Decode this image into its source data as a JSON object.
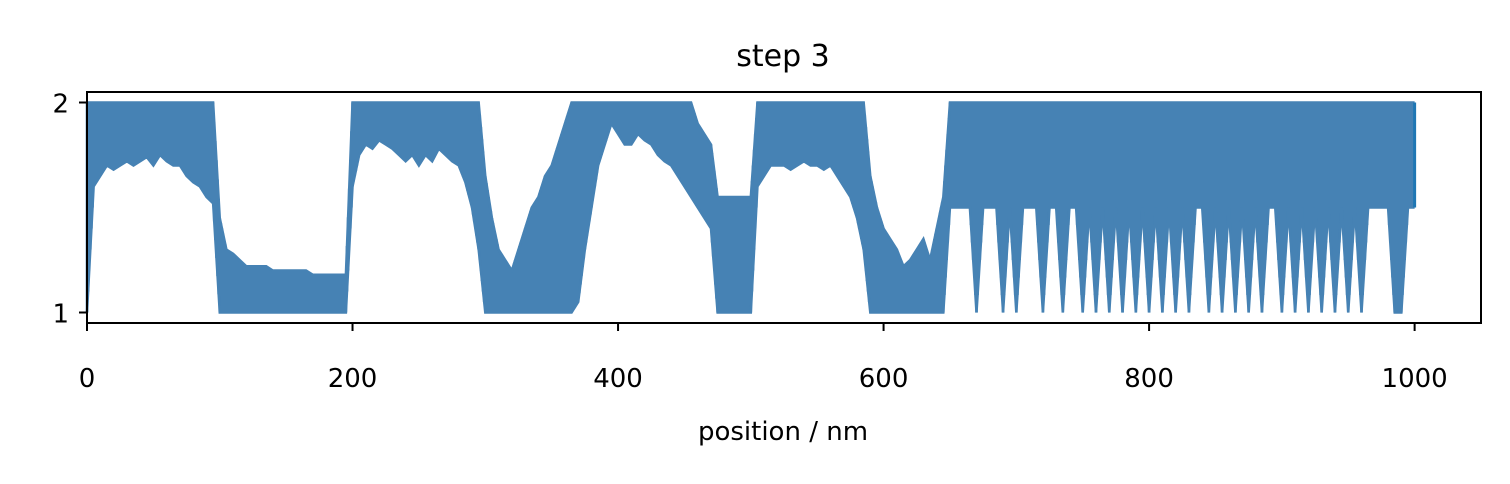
{
  "chart_data": {
    "type": "line",
    "title": "step 3",
    "xlabel": "position / nm",
    "ylabel": "",
    "xlim": [
      0,
      1050
    ],
    "ylim": [
      0.95,
      2.05
    ],
    "xticks": [
      0,
      200,
      400,
      600,
      800,
      1000
    ],
    "xtick_labels": [
      "0",
      "200",
      "400",
      "600",
      "800",
      "1000"
    ],
    "yticks": [
      1,
      2
    ],
    "ytick_labels": [
      "1",
      "2"
    ],
    "grid": false,
    "legend": "none",
    "colors": {
      "series": "#4682b4",
      "end_segment": "#1f77b4",
      "axes": "#000000",
      "background": "#ffffff"
    },
    "series": [
      {
        "x": [
          0,
          5,
          10,
          15,
          20,
          25,
          30,
          35,
          40,
          45,
          50,
          55,
          60,
          65,
          70,
          75,
          80,
          85,
          90,
          95,
          100,
          105,
          110,
          115,
          120,
          125,
          130,
          135,
          140,
          145,
          150,
          155,
          160,
          165,
          170,
          175,
          180,
          185,
          190,
          195,
          200,
          205,
          210,
          215,
          220,
          225,
          230,
          235,
          240,
          245,
          250,
          255,
          260,
          265,
          270,
          275,
          280,
          285,
          290,
          295,
          300,
          305,
          310,
          315,
          320,
          325,
          330,
          335,
          340,
          345,
          350,
          355,
          360,
          365,
          370,
          375,
          380,
          385,
          390,
          395,
          400,
          405,
          410,
          415,
          420,
          425,
          430,
          435,
          440,
          445,
          450,
          455,
          460,
          465,
          470,
          475,
          480,
          485,
          490,
          495,
          500,
          505,
          510,
          515,
          520,
          525,
          530,
          535,
          540,
          545,
          550,
          555,
          560,
          565,
          570,
          575,
          580,
          585,
          590,
          595,
          600,
          605,
          610,
          615,
          620,
          625,
          630,
          635,
          640,
          645,
          650,
          655,
          660,
          665,
          670,
          675,
          680,
          685,
          690,
          695,
          700,
          705,
          710,
          715,
          720,
          725,
          730,
          735,
          740,
          745,
          750,
          755,
          760,
          765,
          770,
          775,
          780,
          785,
          790,
          795,
          800,
          805,
          810,
          815,
          820,
          825,
          830,
          835,
          840,
          845,
          850,
          855,
          860,
          865,
          870,
          875,
          880,
          885,
          890,
          895,
          900,
          905,
          910,
          915,
          920,
          925,
          930,
          935,
          940,
          945,
          950,
          955,
          960,
          965,
          970,
          975,
          980,
          985,
          990,
          995,
          1000
        ],
        "lo": [
          1.0,
          1.6,
          1.65,
          1.7,
          1.68,
          1.7,
          1.72,
          1.7,
          1.72,
          1.74,
          1.7,
          1.75,
          1.72,
          1.7,
          1.7,
          1.65,
          1.62,
          1.6,
          1.55,
          1.52,
          1.0,
          1.0,
          1.0,
          1.0,
          1.0,
          1.0,
          1.0,
          1.0,
          1.0,
          1.0,
          1.0,
          1.0,
          1.0,
          1.0,
          1.0,
          1.0,
          1.0,
          1.0,
          1.0,
          1.0,
          1.6,
          1.75,
          1.8,
          1.78,
          1.82,
          1.8,
          1.78,
          1.75,
          1.72,
          1.75,
          1.7,
          1.75,
          1.72,
          1.78,
          1.75,
          1.72,
          1.7,
          1.62,
          1.5,
          1.3,
          1.0,
          1.0,
          1.0,
          1.0,
          1.0,
          1.0,
          1.0,
          1.0,
          1.0,
          1.0,
          1.0,
          1.0,
          1.0,
          1.0,
          1.05,
          1.3,
          1.5,
          1.7,
          1.8,
          1.9,
          1.85,
          1.8,
          1.8,
          1.85,
          1.82,
          1.8,
          1.75,
          1.72,
          1.7,
          1.65,
          1.6,
          1.55,
          1.5,
          1.45,
          1.4,
          1.0,
          1.0,
          1.0,
          1.0,
          1.0,
          1.0,
          1.6,
          1.65,
          1.7,
          1.7,
          1.7,
          1.68,
          1.7,
          1.72,
          1.7,
          1.7,
          1.68,
          1.7,
          1.65,
          1.6,
          1.55,
          1.45,
          1.3,
          1.0,
          1.0,
          1.0,
          1.0,
          1.0,
          1.0,
          1.0,
          1.0,
          1.0,
          1.0,
          1.0,
          1.0,
          1.5,
          1.5,
          1.5,
          1.5,
          1.0,
          1.5,
          1.5,
          1.5,
          1.0,
          1.5,
          1.0,
          1.5,
          1.5,
          1.5,
          1.0,
          1.5,
          1.5,
          1.0,
          1.5,
          1.5,
          1.0,
          1.5,
          1.0,
          1.5,
          1.0,
          1.5,
          1.0,
          1.5,
          1.0,
          1.5,
          1.0,
          1.5,
          1.0,
          1.5,
          1.0,
          1.5,
          1.0,
          1.5,
          1.5,
          1.0,
          1.5,
          1.0,
          1.5,
          1.0,
          1.5,
          1.0,
          1.5,
          1.0,
          1.5,
          1.5,
          1.0,
          1.5,
          1.0,
          1.5,
          1.0,
          1.5,
          1.0,
          1.5,
          1.0,
          1.5,
          1.0,
          1.5,
          1.0,
          1.5,
          1.5,
          1.5,
          1.5,
          1.0,
          1.0,
          1.5,
          1.5
        ],
        "hi": [
          2.0,
          2.0,
          2.0,
          2.0,
          2.0,
          2.0,
          2.0,
          2.0,
          2.0,
          2.0,
          2.0,
          2.0,
          2.0,
          2.0,
          2.0,
          2.0,
          2.0,
          2.0,
          2.0,
          2.0,
          1.45,
          1.3,
          1.28,
          1.25,
          1.22,
          1.22,
          1.22,
          1.22,
          1.2,
          1.2,
          1.2,
          1.2,
          1.2,
          1.2,
          1.18,
          1.18,
          1.18,
          1.18,
          1.18,
          1.18,
          2.0,
          2.0,
          2.0,
          2.0,
          2.0,
          2.0,
          2.0,
          2.0,
          2.0,
          2.0,
          2.0,
          2.0,
          2.0,
          2.0,
          2.0,
          2.0,
          2.0,
          2.0,
          2.0,
          2.0,
          1.65,
          1.45,
          1.3,
          1.25,
          1.2,
          1.3,
          1.4,
          1.5,
          1.55,
          1.65,
          1.7,
          1.8,
          1.9,
          2.0,
          2.0,
          2.0,
          2.0,
          2.0,
          2.0,
          2.0,
          2.0,
          2.0,
          2.0,
          2.0,
          2.0,
          2.0,
          2.0,
          2.0,
          2.0,
          2.0,
          2.0,
          2.0,
          1.9,
          1.85,
          1.8,
          1.55,
          1.55,
          1.55,
          1.55,
          1.55,
          1.55,
          2.0,
          2.0,
          2.0,
          2.0,
          2.0,
          2.0,
          2.0,
          2.0,
          2.0,
          2.0,
          2.0,
          2.0,
          2.0,
          2.0,
          2.0,
          2.0,
          2.0,
          1.65,
          1.5,
          1.4,
          1.35,
          1.3,
          1.22,
          1.25,
          1.3,
          1.35,
          1.25,
          1.4,
          1.55,
          2.0,
          2.0,
          2.0,
          2.0,
          2.0,
          2.0,
          2.0,
          2.0,
          2.0,
          2.0,
          2.0,
          2.0,
          2.0,
          2.0,
          2.0,
          2.0,
          2.0,
          2.0,
          2.0,
          2.0,
          2.0,
          2.0,
          2.0,
          2.0,
          2.0,
          2.0,
          2.0,
          2.0,
          2.0,
          2.0,
          2.0,
          2.0,
          2.0,
          2.0,
          2.0,
          2.0,
          2.0,
          2.0,
          2.0,
          2.0,
          2.0,
          2.0,
          2.0,
          2.0,
          2.0,
          2.0,
          2.0,
          2.0,
          2.0,
          2.0,
          2.0,
          2.0,
          2.0,
          2.0,
          2.0,
          2.0,
          2.0,
          2.0,
          2.0,
          2.0,
          2.0,
          2.0,
          2.0,
          2.0,
          2.0,
          2.0,
          2.0,
          2.0,
          2.0,
          2.0,
          2.0
        ]
      }
    ]
  }
}
